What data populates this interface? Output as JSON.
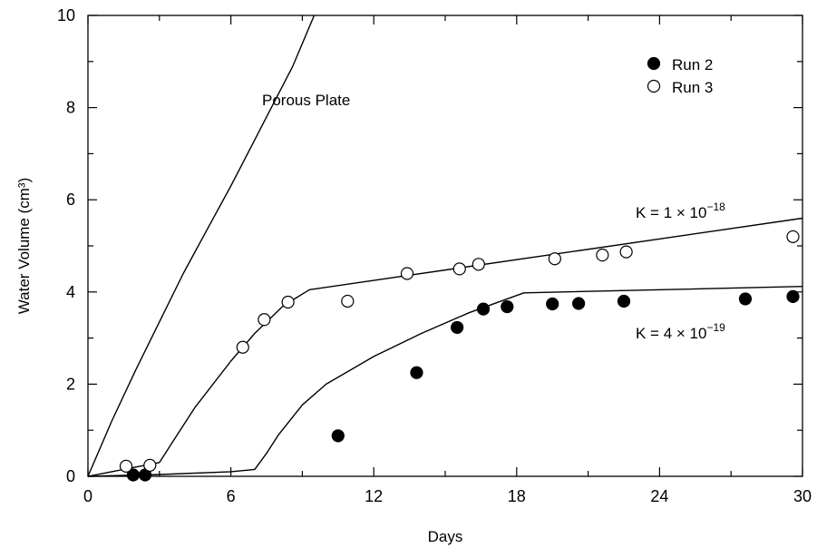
{
  "chart_data": {
    "type": "scatter",
    "xlabel": "Days",
    "ylabel": "Water Volume (cm³)",
    "xlim": [
      0,
      30
    ],
    "ylim": [
      0,
      10
    ],
    "xticks": [
      "0",
      "6",
      "12",
      "18",
      "24",
      "30"
    ],
    "yticks": [
      "0",
      "2",
      "4",
      "6",
      "8",
      "10"
    ],
    "grid": false,
    "legend_position": "top-right",
    "series": [
      {
        "name": "Run 2",
        "marker": "filled-circle",
        "x": [
          1.9,
          2.4,
          10.5,
          13.8,
          15.5,
          16.6,
          17.6,
          19.5,
          20.6,
          22.5,
          27.6,
          29.6
        ],
        "y": [
          0.03,
          0.03,
          0.88,
          2.25,
          3.23,
          3.63,
          3.68,
          3.74,
          3.75,
          3.8,
          3.85,
          3.9
        ]
      },
      {
        "name": "Run 3",
        "marker": "open-circle",
        "x": [
          1.6,
          2.6,
          6.5,
          7.4,
          8.4,
          10.9,
          13.4,
          15.6,
          16.4,
          19.6,
          21.6,
          22.6,
          29.6
        ],
        "y": [
          0.22,
          0.24,
          2.8,
          3.4,
          3.78,
          3.8,
          4.4,
          4.5,
          4.6,
          4.72,
          4.8,
          4.87,
          5.2
        ]
      }
    ],
    "curves": [
      {
        "label": "Porous Plate",
        "x": [
          0,
          1,
          2,
          3,
          4,
          5,
          6,
          7,
          8,
          8.6,
          9.5
        ],
        "y": [
          0,
          1.2,
          2.3,
          3.35,
          4.4,
          5.35,
          6.3,
          7.3,
          8.3,
          8.9,
          10
        ]
      },
      {
        "label": "K = 1 × 10⁻¹⁸",
        "x": [
          0,
          2,
          3,
          3.5,
          4.5,
          6,
          7,
          8.2,
          9.3,
          30
        ],
        "y": [
          0,
          0.2,
          0.3,
          0.7,
          1.5,
          2.5,
          3.1,
          3.7,
          4.05,
          5.6
        ]
      },
      {
        "label": "K = 4 × 10⁻¹⁹",
        "x": [
          0,
          3,
          6,
          7,
          7.5,
          8,
          9,
          10,
          12,
          14,
          16,
          18.3,
          30
        ],
        "y": [
          0,
          0.04,
          0.1,
          0.15,
          0.5,
          0.9,
          1.55,
          2.0,
          2.6,
          3.1,
          3.55,
          3.98,
          4.12
        ]
      }
    ],
    "annotations": [
      {
        "text": "Porous Plate",
        "at": [
          7.3,
          8.0
        ]
      },
      {
        "text": "K = 1 × 10",
        "sup": "−18",
        "at": [
          23.0,
          5.75
        ]
      },
      {
        "text": "K = 4 × 10",
        "sup": "−19",
        "at": [
          23.0,
          3.12
        ]
      }
    ]
  }
}
